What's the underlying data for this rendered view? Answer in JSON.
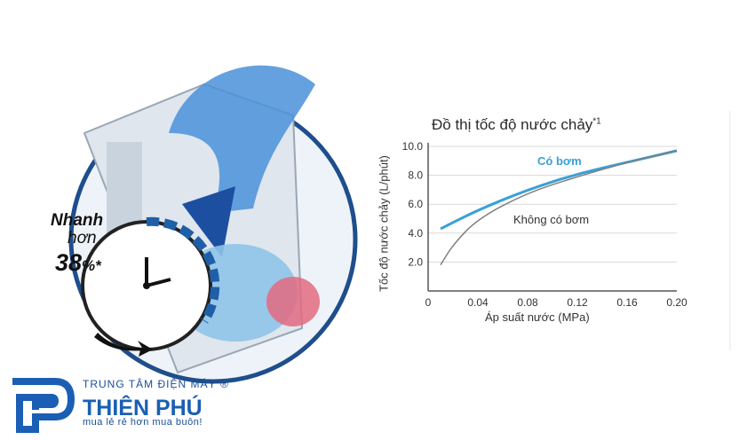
{
  "chart_data": {
    "type": "line",
    "title": "Đồ thị tốc độ nước chảy",
    "title_sup": "*1",
    "xlabel": "Áp suất nước (MPa)",
    "ylabel": "Tốc độ nước chảy (L/phút)",
    "x_ticks": [
      "0",
      "0.04",
      "0.08",
      "0.12",
      "0.16",
      "0.20"
    ],
    "y_ticks": [
      "2.0",
      "4.0",
      "6.0",
      "8.0",
      "10.0"
    ],
    "xlim": [
      0,
      0.2
    ],
    "ylim": [
      0,
      10
    ],
    "grid": true,
    "series": [
      {
        "name": "Có bơm",
        "color": "#3aa0d8",
        "points": [
          [
            0.01,
            4.3
          ],
          [
            0.04,
            5.6
          ],
          [
            0.08,
            7.0
          ],
          [
            0.12,
            8.1
          ],
          [
            0.16,
            8.9
          ],
          [
            0.2,
            9.7
          ]
        ]
      },
      {
        "name": "Không có bơm",
        "color": "#808080",
        "points": [
          [
            0.01,
            1.8
          ],
          [
            0.02,
            3.2
          ],
          [
            0.04,
            5.0
          ],
          [
            0.08,
            6.8
          ],
          [
            0.12,
            7.9
          ],
          [
            0.16,
            8.9
          ],
          [
            0.2,
            9.7
          ]
        ]
      }
    ]
  },
  "promo": {
    "line1": "Nhanh",
    "line2": "hơn",
    "value": "38",
    "percent": "%",
    "asterisk": "*"
  },
  "brand": {
    "subtitle": "TRUNG TÂM ĐIỆN MÁY",
    "registered": "®",
    "name": "THIÊN PHÚ",
    "slogan": "mua lẻ rẻ hơn mua buôn!"
  },
  "colors": {
    "brand_blue": "#1a5fb4",
    "water_blue": "#2f7fd8",
    "clock_blue": "#1f5fa8"
  },
  "icons": [
    "water-swirl-icon",
    "clock-icon",
    "arrow-icon",
    "brand-logo-icon"
  ]
}
